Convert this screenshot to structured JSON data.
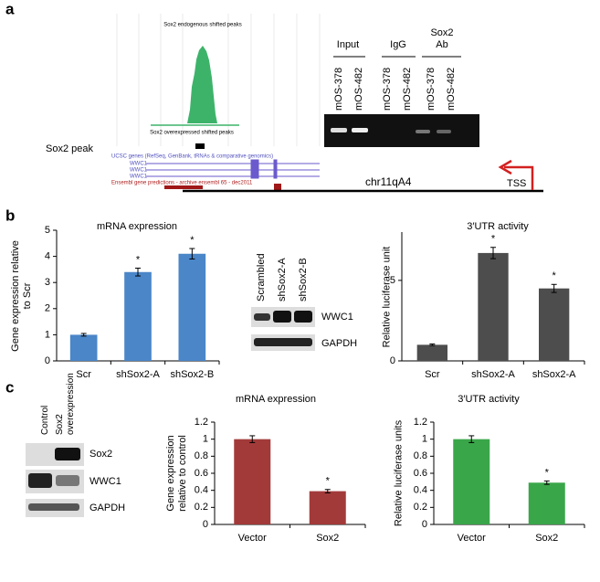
{
  "panels": {
    "a": {
      "label": "a",
      "browser": {
        "track_top": "Sox2 endogenous shifted peaks",
        "track_bottom": "Sox2 overexpressed shifted peaks",
        "peak_label": "Sox2 peak",
        "ucsc": "UCSC genes (RefSeq, GenBank, tRNAs & comparative genomics)",
        "genes": [
          "WWC1",
          "WWC1",
          "WWC1"
        ],
        "ensembl": "Ensembl gene predictions - archive ensembl 65 - dec2011",
        "locus": "chr11qA4",
        "tss": "TSS"
      },
      "gel": {
        "groups": [
          "Input",
          "IgG",
          "Sox2 Ab"
        ],
        "lanes": [
          "mOS-378",
          "mOS-482",
          "mOS-378",
          "mOS-482",
          "mOS-378",
          "mOS-482"
        ]
      }
    },
    "b": {
      "label": "b",
      "blot": {
        "lanes": [
          "Scrambled",
          "shSox2-A",
          "shSox2-B"
        ],
        "bands": [
          "WWC1",
          "GAPDH"
        ]
      }
    },
    "c": {
      "label": "c",
      "blot": {
        "lanes": [
          "Control",
          "Sox2 overexpression"
        ],
        "bands": [
          "Sox2",
          "WWC1",
          "GAPDH"
        ]
      }
    }
  },
  "chart_data": [
    {
      "type": "bar",
      "title": "mRNA expression",
      "y_label": "Gene expression relative to Scr",
      "categories": [
        "Scr",
        "shSox2-A",
        "shSox2-B"
      ],
      "values": [
        1,
        3.4,
        4.1
      ],
      "errors": [
        0.05,
        0.15,
        0.2
      ],
      "annotations": [
        null,
        "*",
        "*"
      ],
      "color": "#4a86c8",
      "ylim": [
        0,
        5
      ],
      "yticks": [
        0,
        1,
        2,
        3,
        4,
        5
      ]
    },
    {
      "type": "bar",
      "title": "3′UTR activity",
      "y_label": "Relative luciferase unit",
      "categories": [
        "Scr",
        "shSox2-A",
        "shSox2-A"
      ],
      "values": [
        1,
        6.7,
        4.5
      ],
      "errors": [
        0.05,
        0.35,
        0.25
      ],
      "annotations": [
        null,
        "*",
        "*"
      ],
      "color": "#4d4d4d",
      "ylim": [
        0,
        8
      ],
      "yticks": [
        0,
        5
      ]
    },
    {
      "type": "bar",
      "title": "mRNA expression",
      "y_label": "Gene expression relative to control",
      "categories": [
        "Vector",
        "Sox2"
      ],
      "values": [
        1,
        0.39
      ],
      "errors": [
        0.04,
        0.02
      ],
      "annotations": [
        null,
        "*"
      ],
      "color": "#a33a3a",
      "ylim": [
        0,
        1.2
      ],
      "yticks": [
        0,
        0.2,
        0.4,
        0.6,
        0.8,
        1,
        1.2
      ]
    },
    {
      "type": "bar",
      "title": "3′UTR activity",
      "y_label": "Relative luciferase units",
      "categories": [
        "Vector",
        "Sox2"
      ],
      "values": [
        1,
        0.49
      ],
      "errors": [
        0.04,
        0.02
      ],
      "annotations": [
        null,
        "*"
      ],
      "color": "#3aa64a",
      "ylim": [
        0,
        1.2
      ],
      "yticks": [
        0,
        0.2,
        0.4,
        0.6,
        0.8,
        1,
        1.2
      ]
    }
  ]
}
